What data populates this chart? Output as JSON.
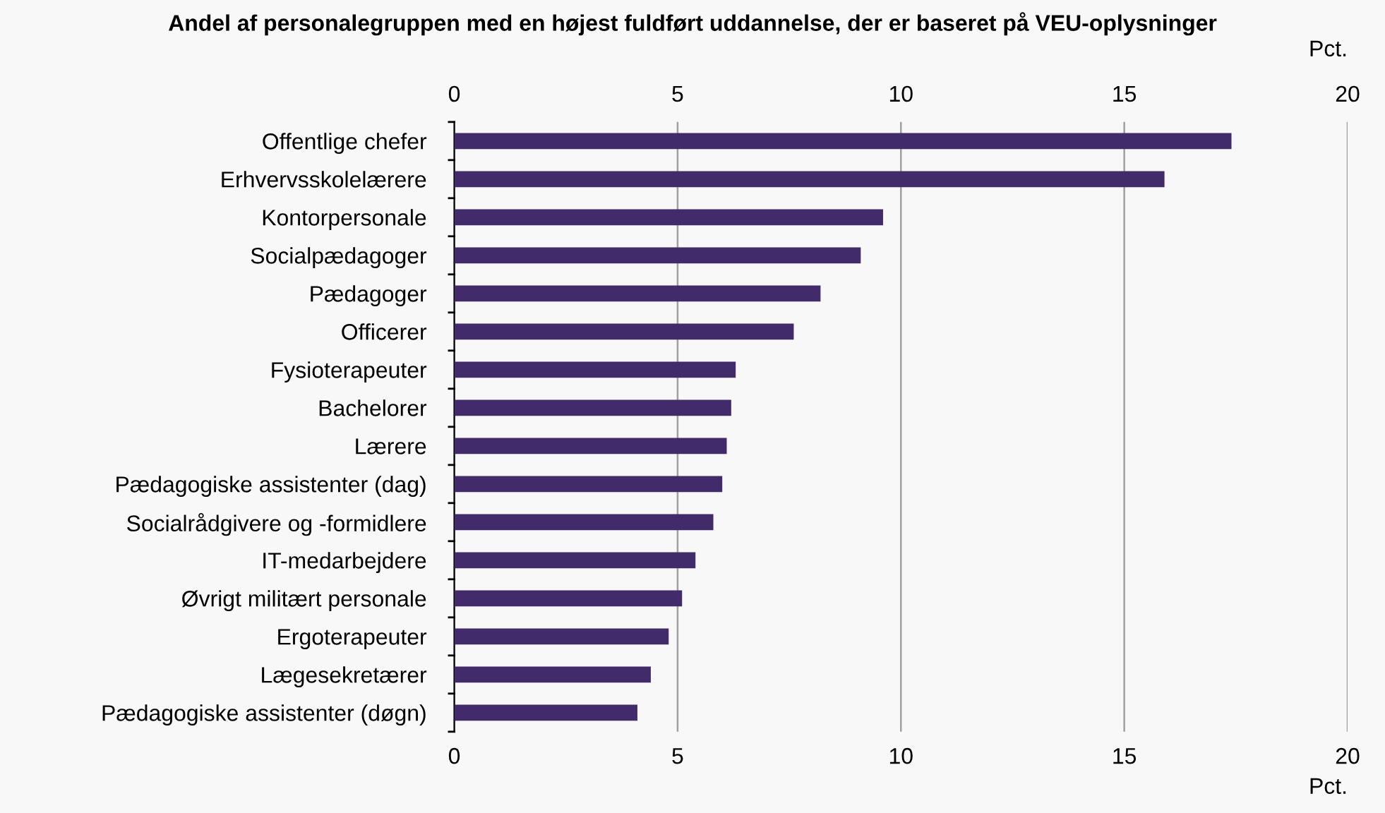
{
  "chart_data": {
    "type": "bar",
    "orientation": "horizontal",
    "title": "Andel af personalegruppen med en højest fuldført uddannelse, der er baseret på VEU-oplysninger",
    "categories": [
      "Offentlige chefer",
      "Erhvervsskolelærere",
      "Kontorpersonale",
      "Socialpædagoger",
      "Pædagoger",
      "Officerer",
      "Fysioterapeuter",
      "Bachelorer",
      "Lærere",
      "Pædagogiske assistenter (dag)",
      "Socialrådgivere og -formidlere",
      "IT-medarbejdere",
      "Øvrigt militært personale",
      "Ergoterapeuter",
      "Lægesekretærer",
      "Pædagogiske assistenter (døgn)"
    ],
    "values": [
      17.4,
      15.9,
      9.6,
      9.1,
      8.2,
      7.6,
      6.3,
      6.2,
      6.1,
      6.0,
      5.8,
      5.4,
      5.1,
      4.8,
      4.4,
      4.1
    ],
    "color": "#422b6b",
    "xlabel": "Pct.",
    "x2label": "Pct.",
    "xlim": [
      0,
      20
    ],
    "xticks": [
      0,
      5,
      10,
      15,
      20
    ],
    "x2lim": [
      0,
      20
    ],
    "x2ticks": [
      0,
      5,
      10,
      15,
      20
    ],
    "grid": "x",
    "legend": false
  }
}
